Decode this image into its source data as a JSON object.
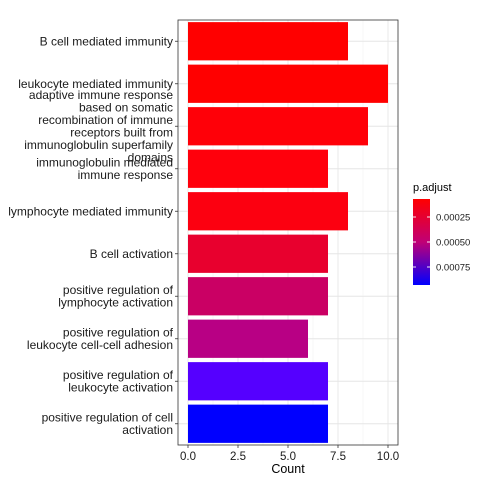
{
  "chart_data": {
    "type": "bar",
    "orientation": "horizontal",
    "categories": [
      [
        "B cell mediated immunity"
      ],
      [
        "leukocyte mediated immunity"
      ],
      [
        "adaptive immune response",
        "based on somatic",
        "recombination of immune",
        "receptors built from",
        "immunoglobulin superfamily",
        "domains"
      ],
      [
        "immunoglobulin mediated",
        "immune response"
      ],
      [
        "lymphocyte mediated immunity"
      ],
      [
        "B cell activation"
      ],
      [
        "positive regulation of",
        "lymphocyte activation"
      ],
      [
        "positive regulation of",
        "leukocyte cell-cell adhesion"
      ],
      [
        "positive regulation of",
        "leukocyte activation"
      ],
      [
        "positive regulation of cell",
        "activation"
      ]
    ],
    "values": [
      8,
      10,
      9,
      7,
      8,
      7,
      7,
      6,
      7,
      7
    ],
    "fill_colors": [
      "#FF0000",
      "#FF0000",
      "#FF0008",
      "#FF000C",
      "#FC0010",
      "#E8002E",
      "#CA0064",
      "#B80084",
      "#5500FF",
      "#0000FF"
    ],
    "xlabel": "Count",
    "xlim": [
      -0.5,
      10.5
    ],
    "xticks": [
      "0.0",
      "2.5",
      "5.0",
      "7.5",
      "10.0"
    ],
    "xtick_values": [
      0,
      2.5,
      5,
      7.5,
      10
    ],
    "grid": true,
    "legend": {
      "title": "p.adjust",
      "position": "right",
      "labels": [
        "0.00025",
        "0.00050",
        "0.00075"
      ],
      "label_values": [
        0.00025,
        0.0005,
        0.00075
      ],
      "range": [
        7e-05,
        0.00093
      ],
      "color_low_p": "#FF0000",
      "color_high_p": "#0000FF"
    }
  }
}
